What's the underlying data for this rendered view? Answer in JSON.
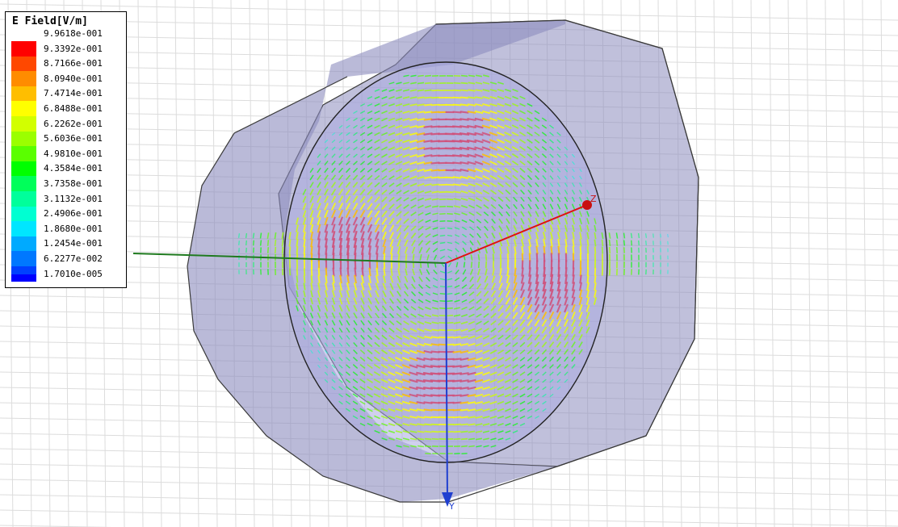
{
  "viewer": {
    "axes": {
      "z_label": "Z",
      "y_label": "Y"
    },
    "colors": {
      "background": "#ffffff",
      "grid": "#dcdcdc",
      "cylinder_fill": "#8c8cbe",
      "cylinder_edge": "#3a3a3a",
      "x_axis": "#1f7a1f",
      "y_axis": "#1f3fd0",
      "z_axis": "#e01010"
    }
  },
  "legend": {
    "title": "E Field[V/m]",
    "entries": [
      {
        "label": "9.9618e-001",
        "color": "#ff0000"
      },
      {
        "label": "9.3392e-001",
        "color": "#ff4800"
      },
      {
        "label": "8.7166e-001",
        "color": "#ff8c00"
      },
      {
        "label": "8.0940e-001",
        "color": "#ffbe00"
      },
      {
        "label": "7.4714e-001",
        "color": "#ffff00"
      },
      {
        "label": "6.8488e-001",
        "color": "#d2ff00"
      },
      {
        "label": "6.2262e-001",
        "color": "#9bff00"
      },
      {
        "label": "5.6036e-001",
        "color": "#5aff00"
      },
      {
        "label": "4.9810e-001",
        "color": "#00ff00"
      },
      {
        "label": "4.3584e-001",
        "color": "#00ff5a"
      },
      {
        "label": "3.7358e-001",
        "color": "#00ff9b"
      },
      {
        "label": "3.1132e-001",
        "color": "#00ffd2"
      },
      {
        "label": "2.4906e-001",
        "color": "#00e6ff"
      },
      {
        "label": "1.8680e-001",
        "color": "#00aaff"
      },
      {
        "label": "1.2454e-001",
        "color": "#0078ff"
      },
      {
        "label": "6.2277e-002",
        "color": "#0040ff"
      },
      {
        "label": "1.7010e-005",
        "color": "#0000ff"
      }
    ]
  }
}
